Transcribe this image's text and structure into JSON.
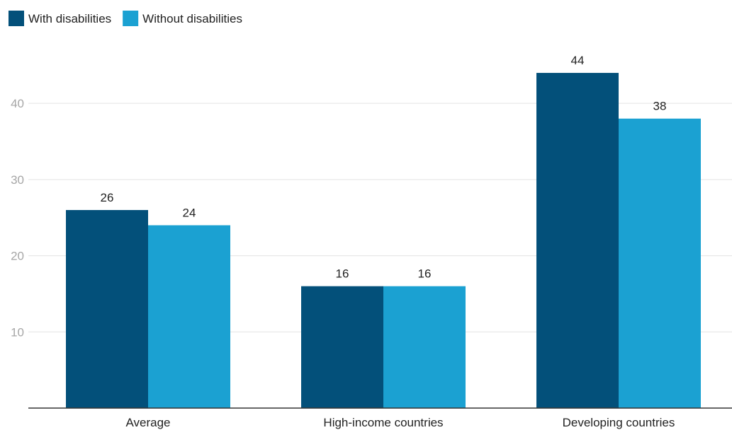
{
  "chart_data": {
    "type": "bar",
    "title": "",
    "xlabel": "",
    "ylabel": "",
    "categories": [
      "Average",
      "High-income countries",
      "Developing countries"
    ],
    "series": [
      {
        "name": "With disabilities",
        "color": "#03507a",
        "values": [
          26,
          16,
          44
        ]
      },
      {
        "name": "Without disabilities",
        "color": "#1ba1d2",
        "values": [
          24,
          16,
          38
        ]
      }
    ],
    "ylim": [
      0,
      48
    ],
    "yticks": [
      10,
      20,
      30,
      40
    ],
    "ytick_labels": [
      "10",
      "20",
      "30",
      "40"
    ],
    "grid": true,
    "legend": "top-left",
    "data_labels": true
  }
}
